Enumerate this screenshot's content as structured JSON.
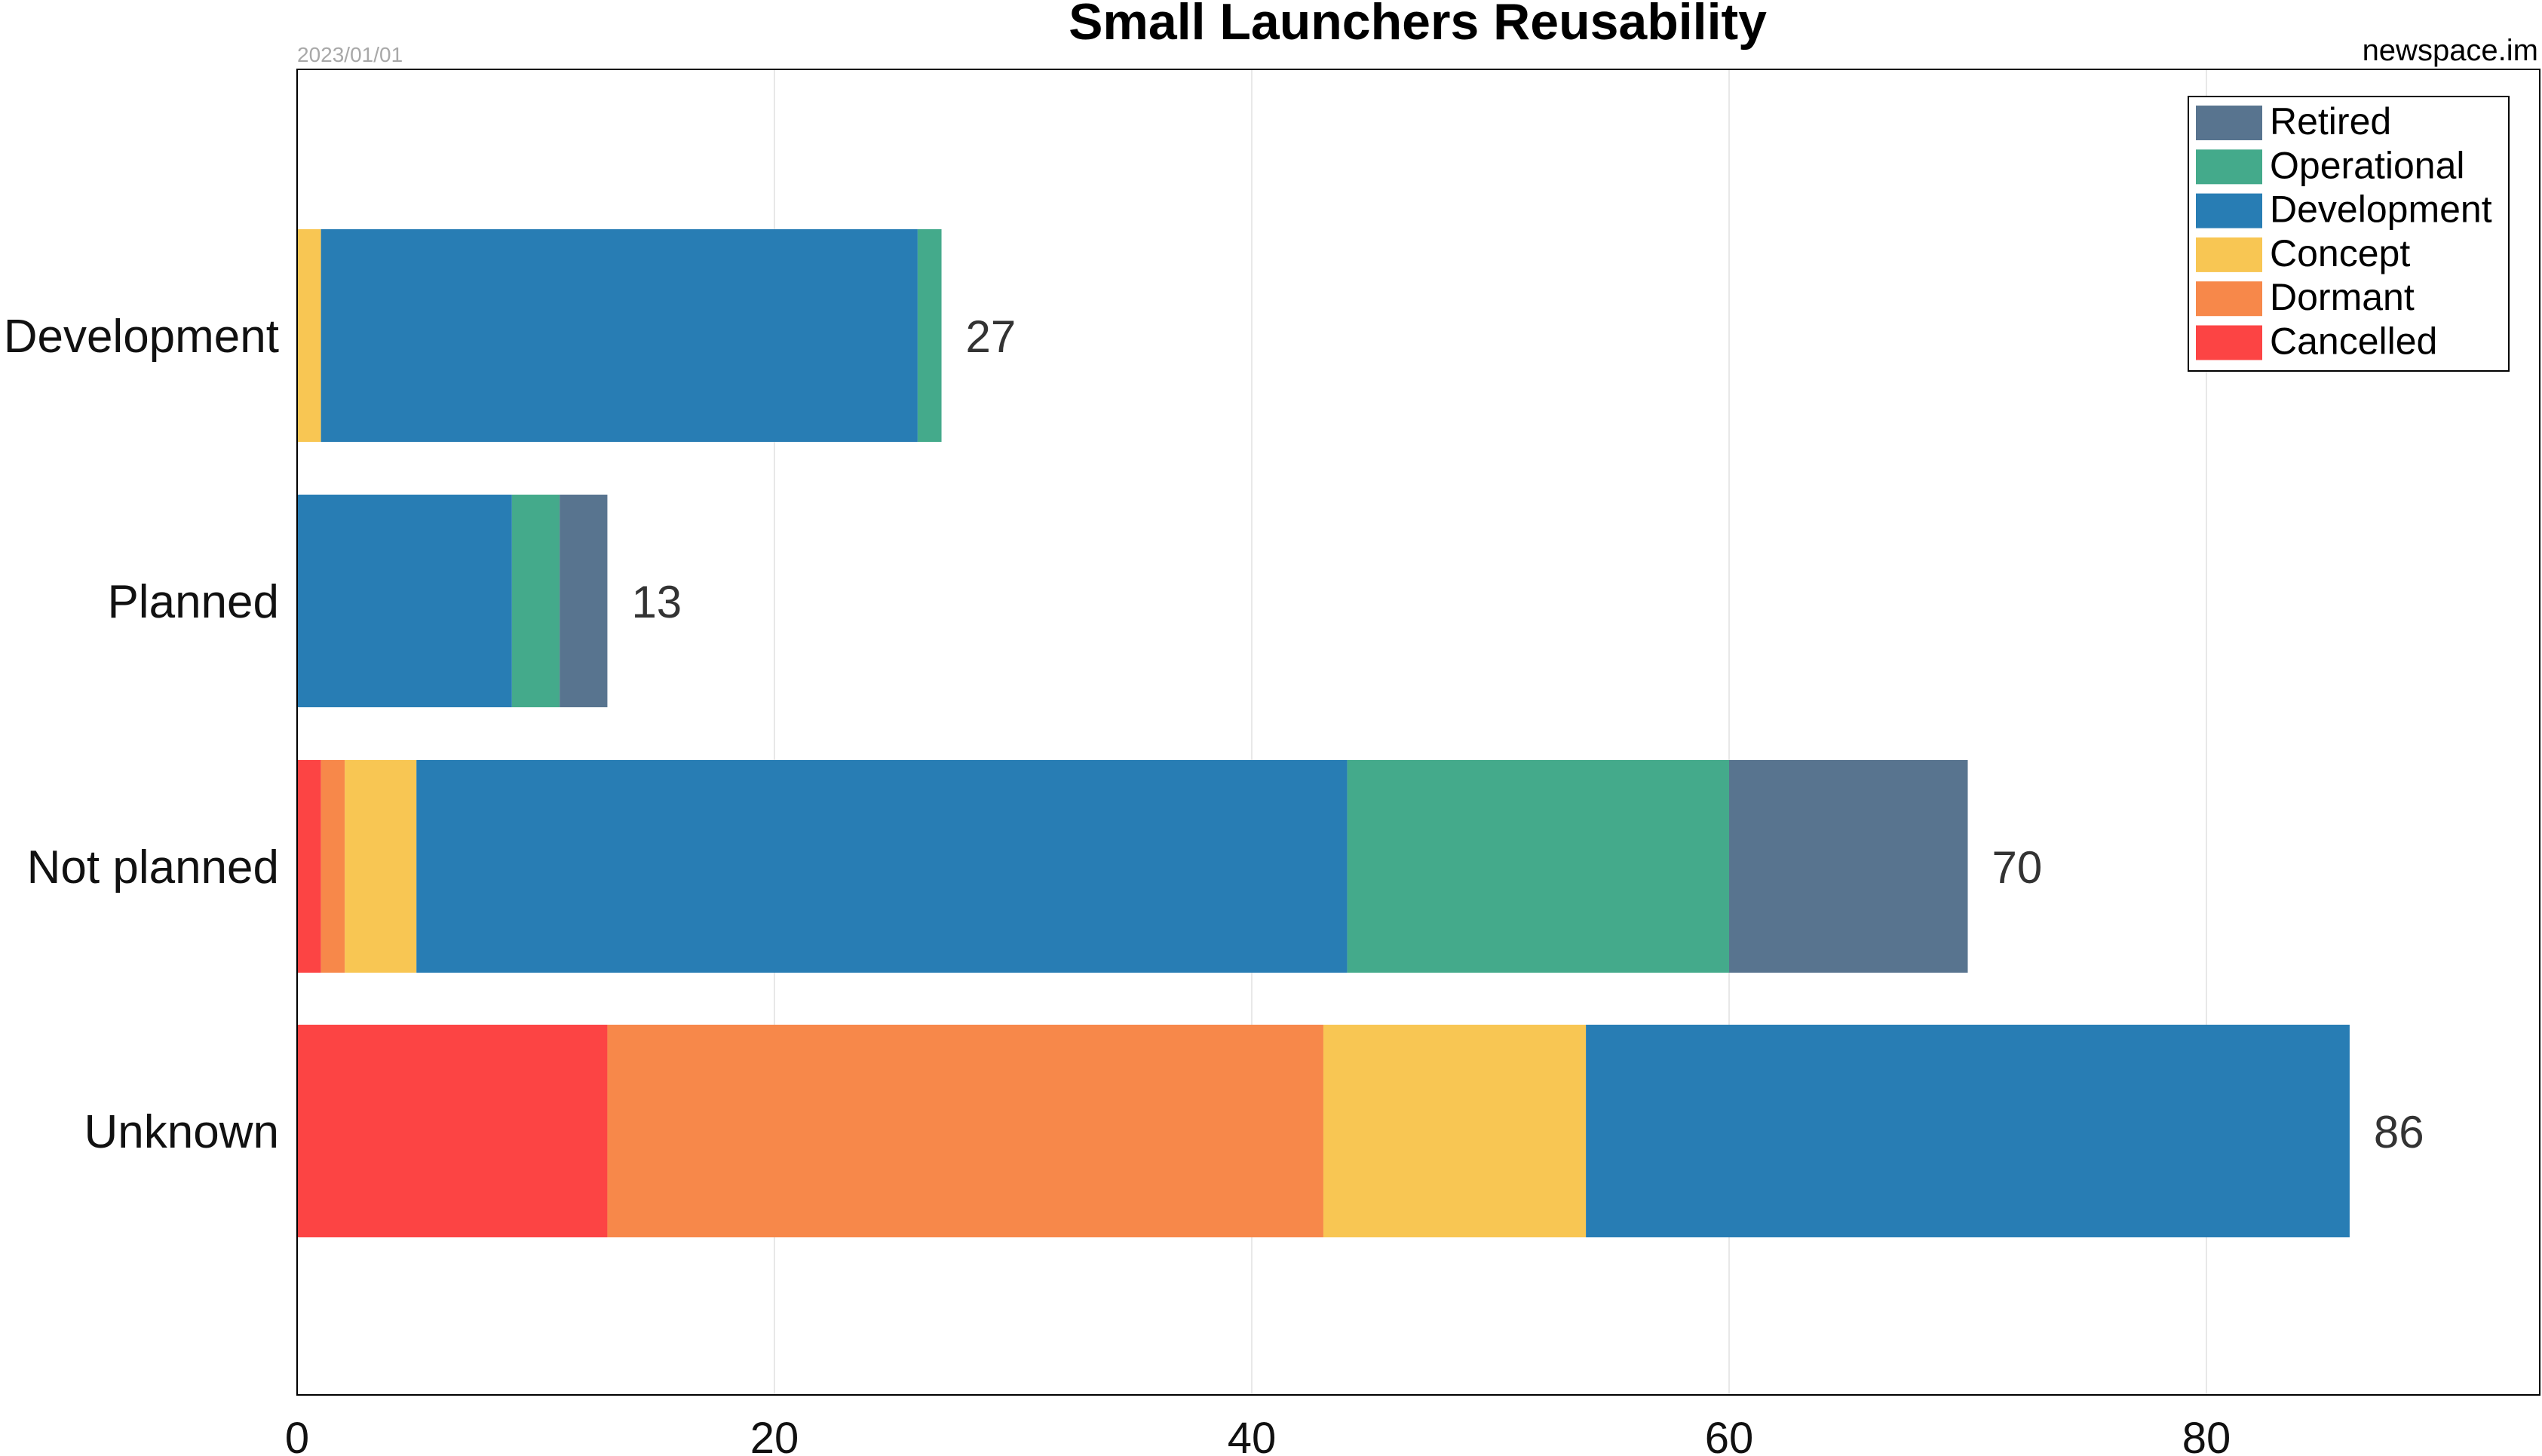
{
  "chart_data": {
    "type": "bar",
    "orientation": "horizontal",
    "stacked": true,
    "title": "Small Launchers Reusability",
    "date": "2023/01/01",
    "source": "newspace.im",
    "categories": [
      "Development",
      "Planned",
      "Not planned",
      "Unknown"
    ],
    "series": [
      {
        "name": "Cancelled",
        "color": "#fc4444",
        "values": [
          0,
          0,
          1,
          13
        ]
      },
      {
        "name": "Dormant",
        "color": "#f7884a",
        "values": [
          0,
          0,
          1,
          30
        ]
      },
      {
        "name": "Concept",
        "color": "#f8c653",
        "values": [
          1,
          0,
          3,
          11
        ]
      },
      {
        "name": "Development",
        "color": "#287db4",
        "values": [
          25,
          9,
          39,
          32
        ]
      },
      {
        "name": "Operational",
        "color": "#44aa8b",
        "values": [
          1,
          2,
          16,
          0
        ]
      },
      {
        "name": "Retired",
        "color": "#58748f",
        "values": [
          0,
          2,
          10,
          0
        ]
      }
    ],
    "totals": [
      27,
      13,
      70,
      86
    ],
    "xticks": [
      0,
      20,
      40,
      60,
      80
    ],
    "xlim": [
      0,
      94
    ],
    "grid": true,
    "legend_position": "top-right",
    "legend_order": [
      "Retired",
      "Operational",
      "Development",
      "Concept",
      "Dormant",
      "Cancelled"
    ]
  }
}
